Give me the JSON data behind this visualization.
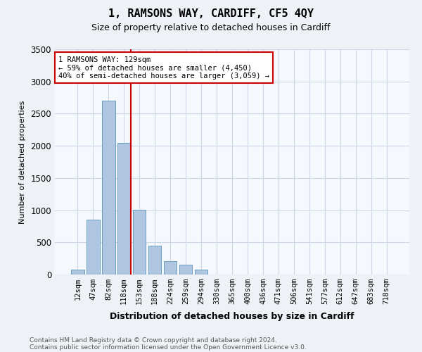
{
  "title": "1, RAMSONS WAY, CARDIFF, CF5 4QY",
  "subtitle": "Size of property relative to detached houses in Cardiff",
  "xlabel": "Distribution of detached houses by size in Cardiff",
  "ylabel": "Number of detached properties",
  "categories": [
    "12sqm",
    "47sqm",
    "82sqm",
    "118sqm",
    "153sqm",
    "188sqm",
    "224sqm",
    "259sqm",
    "294sqm",
    "330sqm",
    "365sqm",
    "400sqm",
    "436sqm",
    "471sqm",
    "506sqm",
    "541sqm",
    "577sqm",
    "612sqm",
    "647sqm",
    "683sqm",
    "718sqm"
  ],
  "bar_heights": [
    80,
    850,
    2700,
    2050,
    1010,
    450,
    210,
    155,
    80,
    0,
    0,
    0,
    0,
    0,
    0,
    0,
    0,
    0,
    0,
    0,
    0
  ],
  "bar_color": "#aec6df",
  "bar_edge_color": "#6a9fc0",
  "vline_x_pos": 3.45,
  "vline_color": "#cc0000",
  "annotation_text": "1 RAMSONS WAY: 129sqm\n← 59% of detached houses are smaller (4,450)\n40% of semi-detached houses are larger (3,059) →",
  "annotation_box_color": "#cc0000",
  "ylim": [
    0,
    3500
  ],
  "yticks": [
    0,
    500,
    1000,
    1500,
    2000,
    2500,
    3000,
    3500
  ],
  "footer_line1": "Contains HM Land Registry data © Crown copyright and database right 2024.",
  "footer_line2": "Contains public sector information licensed under the Open Government Licence v3.0.",
  "bg_color": "#eef2f7",
  "plot_bg_color": "#f5f8fc",
  "grid_color": "#ccd8e8"
}
